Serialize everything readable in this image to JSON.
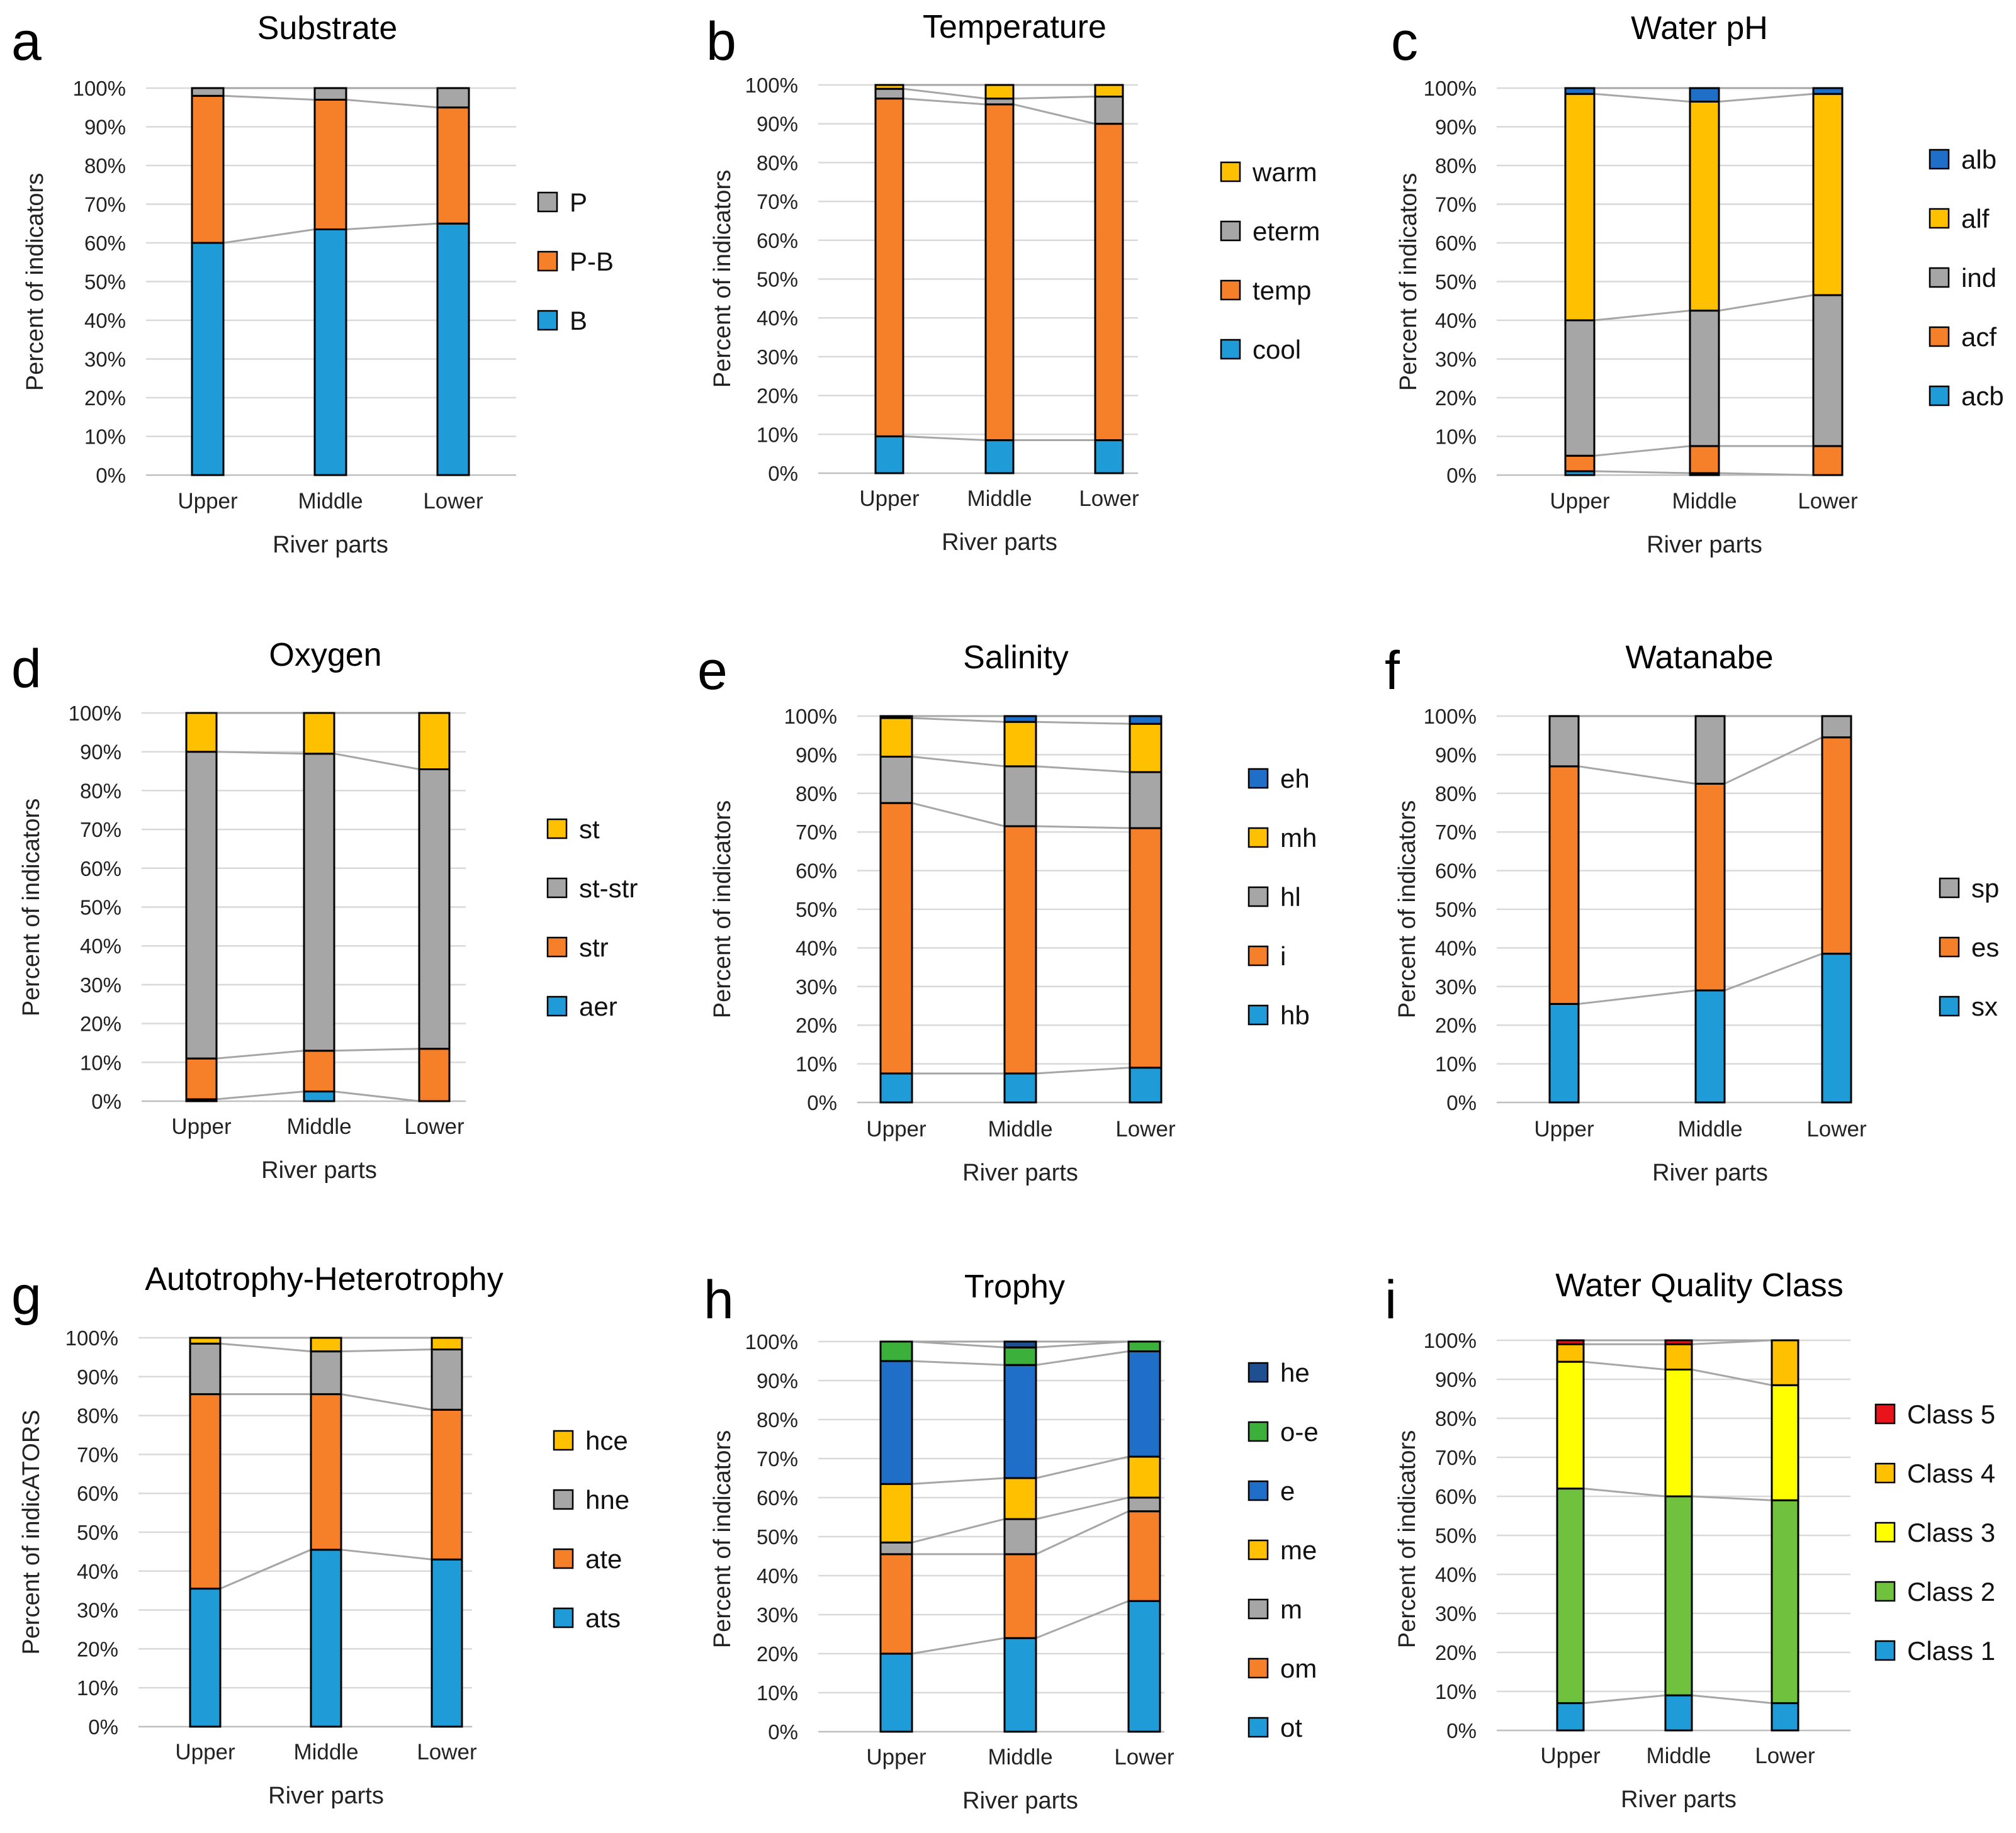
{
  "colors": {
    "blue": "#1f9bd7",
    "orange": "#f6802a",
    "gray": "#a6a6a6",
    "yellow": "#ffc000",
    "darkblue": "#1f6fc9",
    "green": "#3bb03b",
    "navy": "#1e4f91",
    "brightyellow": "#ffff00",
    "lightgreen": "#70c23e",
    "red": "#e8131b"
  },
  "chart_data": [
    {
      "letter": "a",
      "type": "bar",
      "stacked": true,
      "title": "Substrate",
      "ylabel": "Percent of indicators",
      "xlabel": "River parts",
      "yticks": [
        "0%",
        "10%",
        "20%",
        "30%",
        "40%",
        "50%",
        "60%",
        "70%",
        "80%",
        "90%",
        "100%"
      ],
      "categories": [
        "Upper",
        "Middle",
        "Lower"
      ],
      "series": [
        {
          "name": "B",
          "color": "#1f9bd7",
          "values": [
            60,
            63.5,
            65
          ]
        },
        {
          "name": "P-B",
          "color": "#f6802a",
          "values": [
            38,
            33.5,
            30
          ]
        },
        {
          "name": "P",
          "color": "#a6a6a6",
          "values": [
            2,
            3,
            5
          ]
        }
      ]
    },
    {
      "letter": "b",
      "type": "bar",
      "stacked": true,
      "title": "Temperature",
      "ylabel": "Percent of indicators",
      "xlabel": "River parts",
      "yticks": [
        "0%",
        "10%",
        "20%",
        "30%",
        "40%",
        "50%",
        "60%",
        "70%",
        "80%",
        "90%",
        "100%"
      ],
      "categories": [
        "Upper",
        "Middle",
        "Lower"
      ],
      "series": [
        {
          "name": "cool",
          "color": "#1f9bd7",
          "values": [
            9.5,
            8.5,
            8.5
          ]
        },
        {
          "name": "temp",
          "color": "#f6802a",
          "values": [
            87,
            86.5,
            81.5
          ]
        },
        {
          "name": "eterm",
          "color": "#a6a6a6",
          "values": [
            2.5,
            1.5,
            7
          ]
        },
        {
          "name": "warm",
          "color": "#ffc000",
          "values": [
            1,
            3.5,
            3
          ]
        }
      ]
    },
    {
      "letter": "c",
      "type": "bar",
      "stacked": true,
      "title": "Water pH",
      "ylabel": "Percent of indicators",
      "xlabel": "River parts",
      "yticks": [
        "0%",
        "10%",
        "20%",
        "30%",
        "40%",
        "50%",
        "60%",
        "70%",
        "80%",
        "90%",
        "100%"
      ],
      "categories": [
        "Upper",
        "Middle",
        "Lower"
      ],
      "series": [
        {
          "name": "acb",
          "color": "#1f9bd7",
          "values": [
            1,
            0.5,
            0
          ]
        },
        {
          "name": "acf",
          "color": "#f6802a",
          "values": [
            4,
            7,
            7.5
          ]
        },
        {
          "name": "ind",
          "color": "#a6a6a6",
          "values": [
            35,
            35,
            39
          ]
        },
        {
          "name": "alf",
          "color": "#ffc000",
          "values": [
            58.5,
            54,
            52
          ]
        },
        {
          "name": "alb",
          "color": "#1f6fc9",
          "values": [
            1.5,
            3.5,
            1.5
          ]
        }
      ]
    },
    {
      "letter": "d",
      "type": "bar",
      "stacked": true,
      "title": "Oxygen",
      "ylabel": "Percent of indicators",
      "xlabel": "River parts",
      "yticks": [
        "0%",
        "10%",
        "20%",
        "30%",
        "40%",
        "50%",
        "60%",
        "70%",
        "80%",
        "90%",
        "100%"
      ],
      "categories": [
        "Upper",
        "Middle",
        "Lower"
      ],
      "series": [
        {
          "name": "aer",
          "color": "#1f9bd7",
          "values": [
            0.5,
            2.5,
            0
          ]
        },
        {
          "name": "str",
          "color": "#f6802a",
          "values": [
            10.5,
            10.5,
            13.5
          ]
        },
        {
          "name": "st-str",
          "color": "#a6a6a6",
          "values": [
            79,
            76.5,
            72
          ]
        },
        {
          "name": "st",
          "color": "#ffc000",
          "values": [
            10,
            10.5,
            14.5
          ]
        }
      ]
    },
    {
      "letter": "e",
      "type": "bar",
      "stacked": true,
      "title": "Salinity",
      "ylabel": "Percent of indicators",
      "xlabel": "River parts",
      "yticks": [
        "0%",
        "10%",
        "20%",
        "30%",
        "40%",
        "50%",
        "60%",
        "70%",
        "80%",
        "90%",
        "100%"
      ],
      "categories": [
        "Upper",
        "Middle",
        "Lower"
      ],
      "series": [
        {
          "name": "hb",
          "color": "#1f9bd7",
          "values": [
            7.5,
            7.5,
            9
          ]
        },
        {
          "name": "i",
          "color": "#f6802a",
          "values": [
            70,
            64,
            62
          ]
        },
        {
          "name": "hl",
          "color": "#a6a6a6",
          "values": [
            12,
            15.5,
            14.5
          ]
        },
        {
          "name": "mh",
          "color": "#ffc000",
          "values": [
            10,
            11.5,
            12.5
          ]
        },
        {
          "name": "eh",
          "color": "#1f6fc9",
          "values": [
            0.5,
            1.5,
            2
          ]
        }
      ]
    },
    {
      "letter": "f",
      "type": "bar",
      "stacked": true,
      "title": "Watanabe",
      "ylabel": "Percent of indicators",
      "xlabel": "River parts",
      "yticks": [
        "0%",
        "10%",
        "20%",
        "30%",
        "40%",
        "50%",
        "60%",
        "70%",
        "80%",
        "90%",
        "100%"
      ],
      "categories": [
        "Upper",
        "Middle",
        "Lower"
      ],
      "series": [
        {
          "name": "sx",
          "color": "#1f9bd7",
          "values": [
            25.5,
            29,
            38.5
          ]
        },
        {
          "name": "es",
          "color": "#f6802a",
          "values": [
            61.5,
            53.5,
            56
          ]
        },
        {
          "name": "sp",
          "color": "#a6a6a6",
          "values": [
            13,
            17.5,
            5.5
          ]
        }
      ]
    },
    {
      "letter": "g",
      "type": "bar",
      "stacked": true,
      "title": "Autotrophy-Heterotrophy",
      "ylabel": "Percent of indicATORS",
      "xlabel": "River parts",
      "yticks": [
        "0%",
        "10%",
        "20%",
        "30%",
        "40%",
        "50%",
        "60%",
        "70%",
        "80%",
        "90%",
        "100%"
      ],
      "categories": [
        "Upper",
        "Middle",
        "Lower"
      ],
      "series": [
        {
          "name": "ats",
          "color": "#1f9bd7",
          "values": [
            35.5,
            45.5,
            43
          ]
        },
        {
          "name": "ate",
          "color": "#f6802a",
          "values": [
            50,
            40,
            38.5
          ]
        },
        {
          "name": "hne",
          "color": "#a6a6a6",
          "values": [
            13,
            11,
            15.5
          ]
        },
        {
          "name": "hce",
          "color": "#ffc000",
          "values": [
            1.5,
            3.5,
            3
          ]
        }
      ]
    },
    {
      "letter": "h",
      "type": "bar",
      "stacked": true,
      "title": "Trophy",
      "ylabel": "Percent of indicators",
      "xlabel": "River parts",
      "yticks": [
        "0%",
        "10%",
        "20%",
        "30%",
        "40%",
        "50%",
        "60%",
        "70%",
        "80%",
        "90%",
        "100%"
      ],
      "categories": [
        "Upper",
        "Middle",
        "Lower"
      ],
      "series": [
        {
          "name": "ot",
          "color": "#1f9bd7",
          "values": [
            20,
            24,
            33.5
          ]
        },
        {
          "name": "om",
          "color": "#f6802a",
          "values": [
            25.5,
            21.5,
            23
          ]
        },
        {
          "name": "m",
          "color": "#a6a6a6",
          "values": [
            3,
            9,
            3.5
          ]
        },
        {
          "name": "me",
          "color": "#ffc000",
          "values": [
            15,
            10.5,
            10.5
          ]
        },
        {
          "name": "e",
          "color": "#1f6fc9",
          "values": [
            31.5,
            29,
            27
          ]
        },
        {
          "name": "o-e",
          "color": "#3bb03b",
          "values": [
            5,
            4.5,
            2.5
          ]
        },
        {
          "name": "he",
          "color": "#1e4f91",
          "values": [
            0,
            1.5,
            0
          ]
        }
      ]
    },
    {
      "letter": "i",
      "type": "bar",
      "stacked": true,
      "title": "Water Quality Class",
      "ylabel": "Percent of indicators",
      "xlabel": "River parts",
      "yticks": [
        "0%",
        "10%",
        "20%",
        "30%",
        "40%",
        "50%",
        "60%",
        "70%",
        "80%",
        "90%",
        "100%"
      ],
      "categories": [
        "Upper",
        "Middle",
        "Lower"
      ],
      "series": [
        {
          "name": "Class 1",
          "color": "#1f9bd7",
          "values": [
            7,
            9,
            7
          ]
        },
        {
          "name": "Class 2",
          "color": "#70c23e",
          "values": [
            55,
            51,
            52
          ]
        },
        {
          "name": "Class 3",
          "color": "#ffff00",
          "values": [
            32.5,
            32.5,
            29.5
          ]
        },
        {
          "name": "Class 4",
          "color": "#ffc000",
          "values": [
            4.5,
            6.5,
            11.5
          ]
        },
        {
          "name": "Class 5",
          "color": "#e8131b",
          "values": [
            1,
            1,
            0
          ]
        }
      ]
    }
  ]
}
